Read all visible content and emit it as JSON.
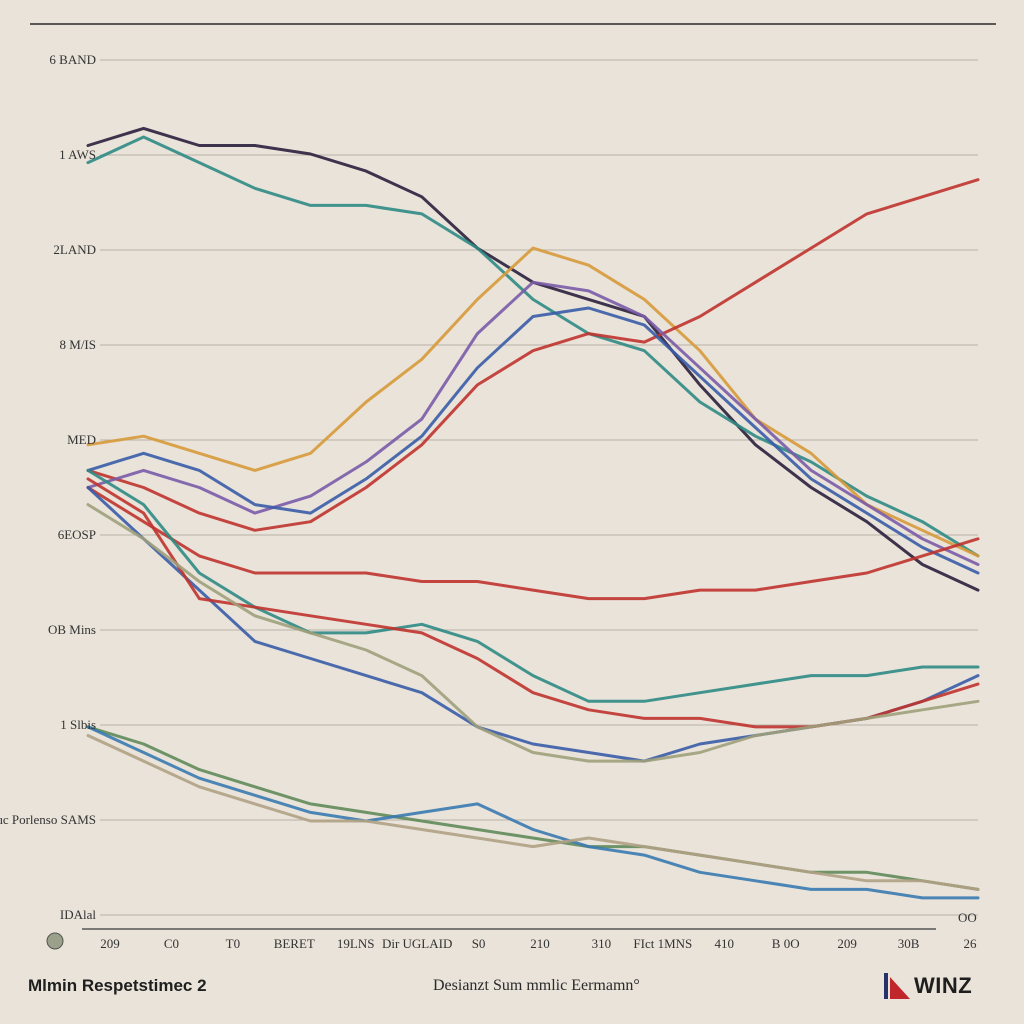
{
  "chart_data": {
    "type": "line",
    "title": "",
    "xlabel": "",
    "ylabel": "",
    "y_tick_labels": [
      "6 BAND",
      "1 AWS",
      "2LAND",
      "8 M/IS",
      "MED",
      "6EOSP",
      "OB Mins",
      "1 Slbis",
      "Tlsuc Porlenso SAMS",
      "IDAlal"
    ],
    "x_tick_labels": [
      "209",
      "C0",
      "T0",
      "BERET",
      "19LNS",
      "Dir UGLAID",
      "S0",
      "210",
      "310",
      "FIct 1MNS",
      "410",
      "B 0O",
      "209",
      "30B",
      "26"
    ],
    "corner_label": "OO",
    "x_count": 17,
    "ylim": [
      0,
      100
    ],
    "grid": true,
    "legend": "none",
    "series": [
      {
        "color": "#2a1f3d",
        "values": [
          90,
          92,
          90,
          90,
          89,
          87,
          84,
          78,
          74,
          72,
          70,
          62,
          55,
          50,
          46,
          41,
          38
        ]
      },
      {
        "color": "#2f8a84",
        "values": [
          88,
          91,
          88,
          85,
          83,
          83,
          82,
          78,
          72,
          68,
          66,
          60,
          56,
          53,
          49,
          46,
          42
        ]
      },
      {
        "color": "#d79a3a",
        "values": [
          55,
          56,
          54,
          52,
          54,
          60,
          65,
          72,
          78,
          76,
          72,
          66,
          58,
          54,
          48,
          45,
          42
        ]
      },
      {
        "color": "#c0332e",
        "values": [
          52,
          50,
          47,
          45,
          46,
          50,
          55,
          62,
          66,
          68,
          67,
          70,
          74,
          78,
          82,
          84,
          86
        ]
      },
      {
        "color": "#7a5ba8",
        "values": [
          50,
          52,
          50,
          47,
          49,
          53,
          58,
          68,
          74,
          73,
          70,
          64,
          58,
          52,
          48,
          44,
          41
        ]
      },
      {
        "color": "#3a5ca8",
        "values": [
          52,
          54,
          52,
          48,
          47,
          51,
          56,
          64,
          70,
          71,
          69,
          63,
          57,
          51,
          47,
          43,
          40
        ]
      },
      {
        "color": "#c0332e",
        "values": [
          50,
          46,
          42,
          40,
          40,
          40,
          39,
          39,
          38,
          37,
          37,
          38,
          38,
          39,
          40,
          42,
          44
        ]
      },
      {
        "color": "#2f8a84",
        "values": [
          52,
          48,
          40,
          36,
          33,
          33,
          34,
          32,
          28,
          25,
          25,
          26,
          27,
          28,
          28,
          29,
          29
        ]
      },
      {
        "color": "#3a5ca8",
        "values": [
          50,
          44,
          38,
          32,
          30,
          28,
          26,
          22,
          20,
          19,
          18,
          20,
          21,
          22,
          23,
          25,
          28
        ]
      },
      {
        "color": "#c0332e",
        "values": [
          51,
          47,
          37,
          36,
          35,
          34,
          33,
          30,
          26,
          24,
          23,
          23,
          22,
          22,
          23,
          25,
          27
        ]
      },
      {
        "color": "#9fa07a",
        "values": [
          48,
          44,
          39,
          35,
          33,
          31,
          28,
          22,
          19,
          18,
          18,
          19,
          21,
          22,
          23,
          24,
          25
        ]
      },
      {
        "color": "#5f8a5a",
        "values": [
          22,
          20,
          17,
          15,
          13,
          12,
          11,
          10,
          9,
          8,
          8,
          7,
          6,
          5,
          5,
          4,
          3
        ]
      },
      {
        "color": "#3a7ab0",
        "values": [
          22,
          19,
          16,
          14,
          12,
          11,
          12,
          13,
          10,
          8,
          7,
          5,
          4,
          3,
          3,
          2,
          2
        ]
      },
      {
        "color": "#b0a184",
        "values": [
          21,
          18,
          15,
          13,
          11,
          11,
          10,
          9,
          8,
          9,
          8,
          7,
          6,
          5,
          4,
          4,
          3
        ]
      }
    ]
  },
  "footer": {
    "left_label": "Mlmin Respetstimec 2",
    "center_label": "Desianzt Sum mmlic Eermamn°",
    "logo_text": "WINZ"
  }
}
